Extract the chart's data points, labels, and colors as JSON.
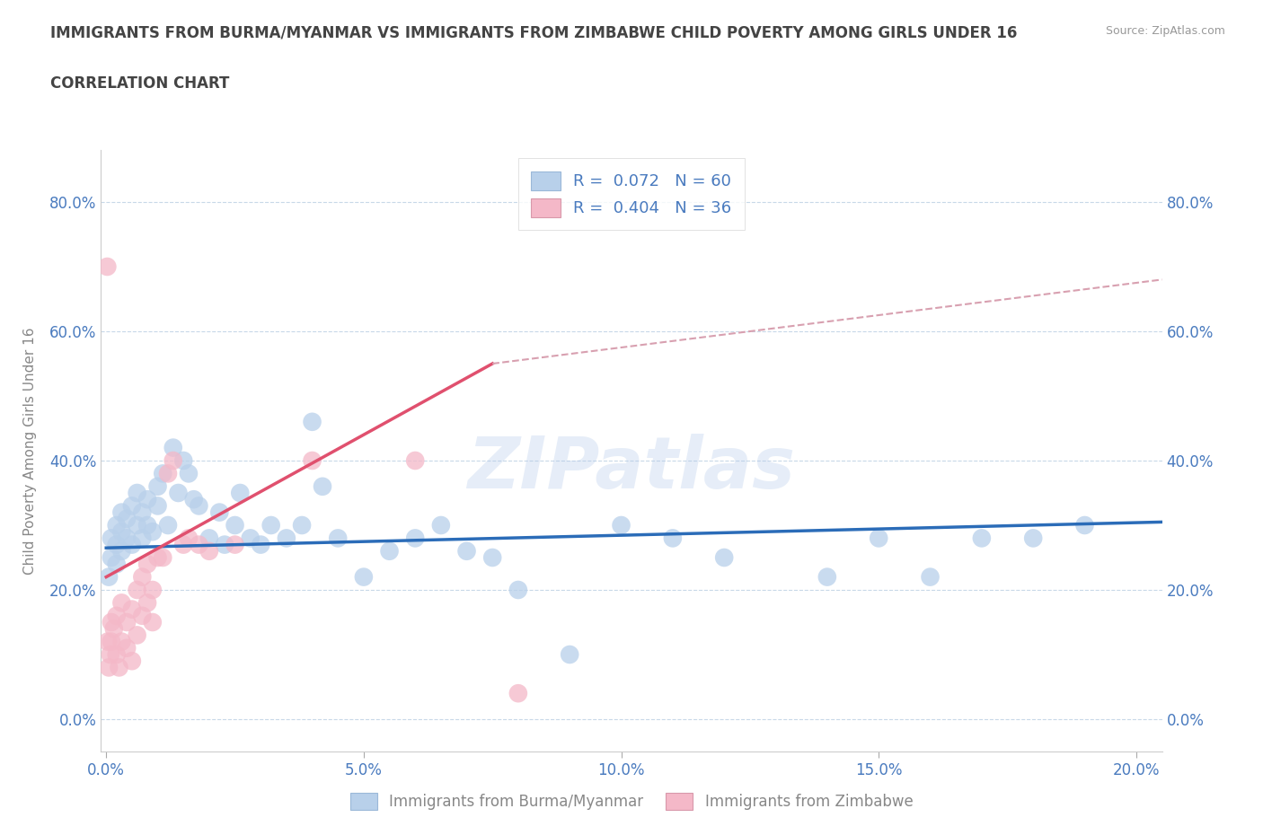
{
  "title": "IMMIGRANTS FROM BURMA/MYANMAR VS IMMIGRANTS FROM ZIMBABWE CHILD POVERTY AMONG GIRLS UNDER 16",
  "subtitle": "CORRELATION CHART",
  "source": "Source: ZipAtlas.com",
  "ylabel": "Child Poverty Among Girls Under 16",
  "xlim": [
    -0.001,
    0.205
  ],
  "ylim": [
    -0.05,
    0.88
  ],
  "xticks": [
    0.0,
    0.05,
    0.1,
    0.15,
    0.2
  ],
  "yticks": [
    0.0,
    0.2,
    0.4,
    0.6,
    0.8
  ],
  "watermark": "ZIPatlas",
  "legend1_label": "R =  0.072   N = 60",
  "legend2_label": "R =  0.404   N = 36",
  "legend1_color": "#b8d0ea",
  "legend2_color": "#f4b8c8",
  "scatter_color_blue": "#b8d0ea",
  "scatter_color_pink": "#f4b8c8",
  "trendline_blue": "#2b6cb8",
  "trendline_pink": "#e0506e",
  "trendline_dashed": "#d8a0b0",
  "grid_color": "#c8d8e8",
  "background_color": "#ffffff",
  "title_color": "#444444",
  "axis_label_color": "#4a7bbf",
  "tick_color": "#888888",
  "burma_x": [
    0.0005,
    0.001,
    0.001,
    0.002,
    0.002,
    0.002,
    0.003,
    0.003,
    0.003,
    0.004,
    0.004,
    0.005,
    0.005,
    0.006,
    0.006,
    0.007,
    0.007,
    0.008,
    0.008,
    0.009,
    0.01,
    0.01,
    0.011,
    0.012,
    0.013,
    0.014,
    0.015,
    0.016,
    0.017,
    0.018,
    0.02,
    0.022,
    0.023,
    0.025,
    0.026,
    0.028,
    0.03,
    0.032,
    0.035,
    0.038,
    0.04,
    0.042,
    0.045,
    0.05,
    0.055,
    0.06,
    0.065,
    0.07,
    0.075,
    0.08,
    0.09,
    0.1,
    0.11,
    0.12,
    0.14,
    0.15,
    0.16,
    0.17,
    0.18,
    0.19
  ],
  "burma_y": [
    0.22,
    0.25,
    0.28,
    0.24,
    0.27,
    0.3,
    0.26,
    0.29,
    0.32,
    0.28,
    0.31,
    0.27,
    0.33,
    0.3,
    0.35,
    0.28,
    0.32,
    0.3,
    0.34,
    0.29,
    0.33,
    0.36,
    0.38,
    0.3,
    0.42,
    0.35,
    0.4,
    0.38,
    0.34,
    0.33,
    0.28,
    0.32,
    0.27,
    0.3,
    0.35,
    0.28,
    0.27,
    0.3,
    0.28,
    0.3,
    0.46,
    0.36,
    0.28,
    0.22,
    0.26,
    0.28,
    0.3,
    0.26,
    0.25,
    0.2,
    0.1,
    0.3,
    0.28,
    0.25,
    0.22,
    0.28,
    0.22,
    0.28,
    0.28,
    0.3
  ],
  "zimbabwe_x": [
    0.0002,
    0.0003,
    0.0005,
    0.0008,
    0.001,
    0.001,
    0.0015,
    0.002,
    0.002,
    0.0025,
    0.003,
    0.003,
    0.004,
    0.004,
    0.005,
    0.005,
    0.006,
    0.006,
    0.007,
    0.007,
    0.008,
    0.008,
    0.009,
    0.009,
    0.01,
    0.011,
    0.012,
    0.013,
    0.015,
    0.016,
    0.018,
    0.02,
    0.025,
    0.04,
    0.06,
    0.08
  ],
  "zimbabwe_y": [
    0.7,
    0.12,
    0.08,
    0.1,
    0.15,
    0.12,
    0.14,
    0.1,
    0.16,
    0.08,
    0.18,
    0.12,
    0.15,
    0.11,
    0.17,
    0.09,
    0.2,
    0.13,
    0.22,
    0.16,
    0.24,
    0.18,
    0.2,
    0.15,
    0.25,
    0.25,
    0.38,
    0.4,
    0.27,
    0.28,
    0.27,
    0.26,
    0.27,
    0.4,
    0.4,
    0.04
  ],
  "blue_trend_x0": 0.0,
  "blue_trend_x1": 0.205,
  "blue_trend_y0": 0.265,
  "blue_trend_y1": 0.305,
  "pink_trend_x0": 0.0,
  "pink_trend_x1": 0.075,
  "pink_trend_y0": 0.22,
  "pink_trend_y1": 0.55,
  "dashed_trend_x0": 0.075,
  "dashed_trend_x1": 0.205,
  "dashed_trend_y0": 0.55,
  "dashed_trend_y1": 0.68,
  "legend_bottom_label1": "Immigrants from Burma/Myanmar",
  "legend_bottom_label2": "Immigrants from Zimbabwe"
}
